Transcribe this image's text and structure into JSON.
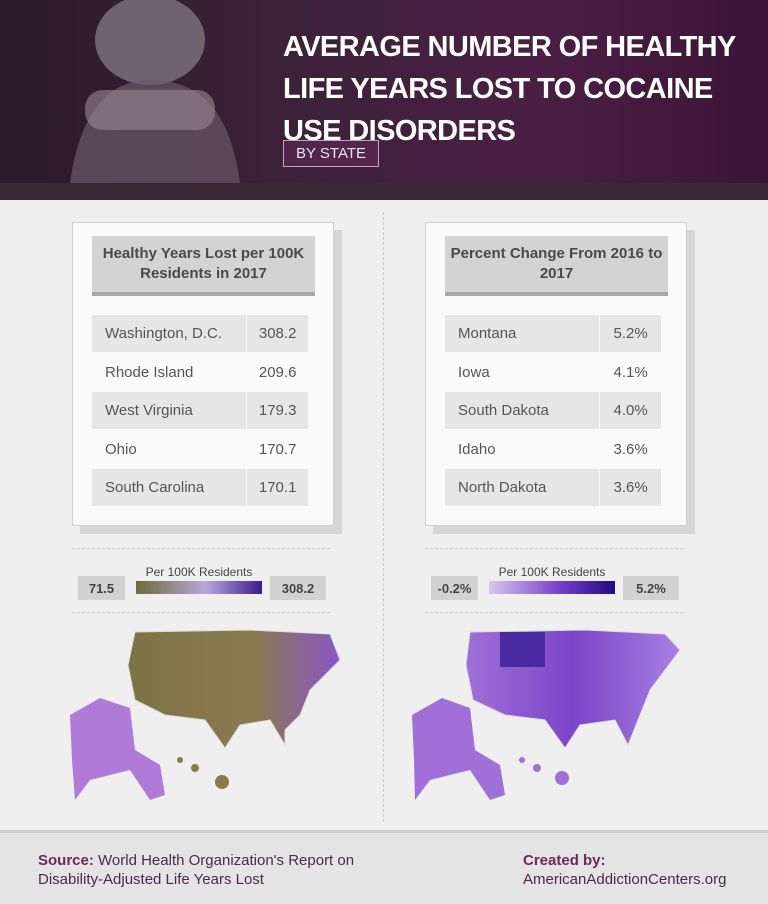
{
  "header": {
    "title": "AVERAGE NUMBER OF HEALTHY LIFE YEARS LOST TO COCAINE USE DISORDERS",
    "subtitle": "BY STATE"
  },
  "panels": [
    {
      "title": "Healthy Years Lost per 100K Residents in 2017",
      "rows": [
        [
          "Washington, D.C.",
          "308.2"
        ],
        [
          "Rhode Island",
          "209.6"
        ],
        [
          "West Virginia",
          "179.3"
        ],
        [
          "Ohio",
          "170.7"
        ],
        [
          "South Carolina",
          "170.1"
        ]
      ],
      "legend": {
        "label": "Per 100K Residents",
        "min": "71.5",
        "max": "308.2"
      }
    },
    {
      "title": "Percent Change From 2016 to 2017",
      "rows": [
        [
          "Montana",
          "5.2%"
        ],
        [
          "Iowa",
          "4.1%"
        ],
        [
          "South Dakota",
          "4.0%"
        ],
        [
          "Idaho",
          "3.6%"
        ],
        [
          "North Dakota",
          "3.6%"
        ]
      ],
      "legend": {
        "label": "Per 100K Residents",
        "min": "-0.2%",
        "max": "5.2%"
      }
    }
  ],
  "footer": {
    "source_label": "Source:",
    "source": "World Health Organization's Report on Disability-Adjusted Life Years Lost",
    "created_label": "Created by:",
    "created": "AmericanAddictionCenters.org"
  }
}
